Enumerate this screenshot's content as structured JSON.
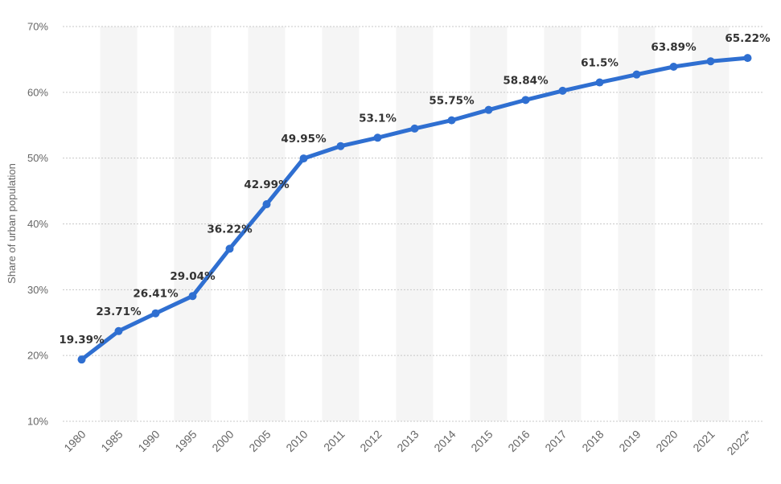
{
  "chart_data": {
    "type": "line",
    "title": "",
    "xlabel": "",
    "ylabel": "Share of urban population",
    "ylim": [
      10,
      70
    ],
    "yticks": [
      10,
      20,
      30,
      40,
      50,
      60,
      70
    ],
    "ytick_labels": [
      "10%",
      "20%",
      "30%",
      "40%",
      "50%",
      "60%",
      "70%"
    ],
    "grid": true,
    "categories": [
      "1980",
      "1985",
      "1990",
      "1995",
      "2000",
      "2005",
      "2010",
      "2011",
      "2012",
      "2013",
      "2014",
      "2015",
      "2016",
      "2017",
      "2018",
      "2019",
      "2020",
      "2021",
      "2022*"
    ],
    "series": [
      {
        "name": "Share of urban population",
        "color": "#2f6fd1",
        "values": [
          19.39,
          23.71,
          26.41,
          29.04,
          36.22,
          42.99,
          49.95,
          51.83,
          53.1,
          54.49,
          55.75,
          57.33,
          58.84,
          60.24,
          61.5,
          62.71,
          63.89,
          64.72,
          65.22
        ],
        "labels": [
          "19.39%",
          "23.71%",
          "26.41%",
          "29.04%",
          "36.22%",
          "42.99%",
          "49.95%",
          "",
          "53.1%",
          "",
          "55.75%",
          "",
          "58.84%",
          "",
          "61.5%",
          "",
          "63.89%",
          "",
          "65.22%"
        ]
      }
    ]
  }
}
